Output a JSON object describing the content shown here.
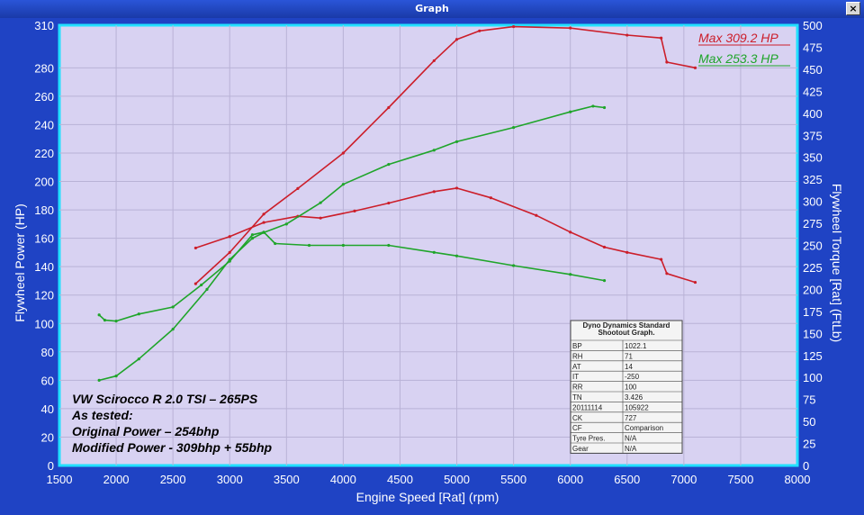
{
  "window": {
    "title": "Graph",
    "close_label": "×"
  },
  "colors": {
    "frame": "#1f43c4",
    "plot_border": "#22e0ff",
    "plot_bg": "#d8d2f2",
    "grid": "#b9b2d6",
    "red": "#cc1e2a",
    "green": "#1fa52a"
  },
  "chart_data": {
    "type": "line",
    "xlabel": "Engine Speed [Rat] (rpm)",
    "ylabel": "Flywheel Power (HP)",
    "ylabel_right": "Flywheel Torque [Rat] (FtLb)",
    "xlim": [
      1500,
      8000
    ],
    "ylim": [
      0,
      310
    ],
    "ylim_right": [
      0,
      500
    ],
    "x_ticks": [
      "1500",
      "2000",
      "2500",
      "3000",
      "3500",
      "4000",
      "4500",
      "5000",
      "5500",
      "6000",
      "6500",
      "7000",
      "7500",
      "8000"
    ],
    "y_ticks": [
      "0",
      "20",
      "40",
      "60",
      "80",
      "100",
      "120",
      "140",
      "160",
      "180",
      "200",
      "220",
      "240",
      "260",
      "280",
      "310"
    ],
    "y_ticks_right": [
      "0",
      "25",
      "50",
      "75",
      "100",
      "125",
      "150",
      "175",
      "200",
      "225",
      "250",
      "275",
      "300",
      "325",
      "350",
      "375",
      "400",
      "425",
      "450",
      "475",
      "500"
    ],
    "grid": true,
    "legend_position": "top-right",
    "legend": [
      "Max 309.2 HP",
      "Max 253.3 HP"
    ],
    "annotation": [
      "VW Scirocco R 2.0 TSI – 265PS",
      "As tested:",
      "Original Power – 254bhp",
      "Modified Power - 309bhp + 55bhp"
    ],
    "series": [
      {
        "color": "#cc1e2a",
        "axis": "left",
        "x": [
          2700,
          3000,
          3300,
          3600,
          4000,
          4400,
          4800,
          5000,
          5200,
          5500,
          6000,
          6500,
          6800,
          6850,
          7100
        ],
        "y": [
          128,
          150,
          177,
          195,
          220,
          252,
          285,
          300,
          306,
          309,
          308,
          303,
          301,
          284,
          280
        ]
      },
      {
        "color": "#cc1e2a",
        "axis": "right",
        "x": [
          2700,
          3000,
          3300,
          3600,
          3800,
          4100,
          4400,
          4800,
          5000,
          5300,
          5700,
          6000,
          6300,
          6500,
          6800,
          6850,
          7100
        ],
        "y": [
          247,
          260,
          276,
          283,
          281,
          289,
          298,
          311,
          315,
          304,
          284,
          265,
          248,
          242,
          234,
          218,
          208
        ]
      },
      {
        "color": "#1fa52a",
        "axis": "left",
        "x": [
          1850,
          2000,
          2200,
          2500,
          2800,
          3000,
          3200,
          3300,
          3500,
          3800,
          4000,
          4400,
          4800,
          5000,
          5500,
          6000,
          6200,
          6300
        ],
        "y": [
          60,
          63,
          75,
          96,
          124,
          145,
          160,
          164,
          170,
          185,
          198,
          212,
          222,
          228,
          238,
          249,
          253,
          252
        ]
      },
      {
        "color": "#1fa52a",
        "axis": "right",
        "x": [
          1850,
          1900,
          2000,
          2200,
          2500,
          2750,
          3000,
          3200,
          3300,
          3400,
          3700,
          4000,
          4400,
          4800,
          5000,
          5500,
          6000,
          6300
        ],
        "y": [
          171,
          165,
          164,
          172,
          180,
          205,
          232,
          262,
          265,
          252,
          250,
          250,
          250,
          242,
          238,
          227,
          217,
          210
        ]
      }
    ],
    "data_table": {
      "title": [
        "Dyno Dynamics Standard",
        "Shootout Graph."
      ],
      "rows": [
        [
          "BP",
          "1022.1"
        ],
        [
          "RH",
          "71"
        ],
        [
          "AT",
          "14"
        ],
        [
          "IT",
          "-250"
        ],
        [
          "RR",
          "100"
        ],
        [
          "TN",
          "3.426"
        ],
        [
          "20111114",
          "105922"
        ],
        [
          "CK",
          "727"
        ],
        [
          "CF",
          "Comparison"
        ],
        [
          "Tyre Pres.",
          "N/A"
        ],
        [
          "Gear",
          "N/A"
        ]
      ]
    }
  }
}
